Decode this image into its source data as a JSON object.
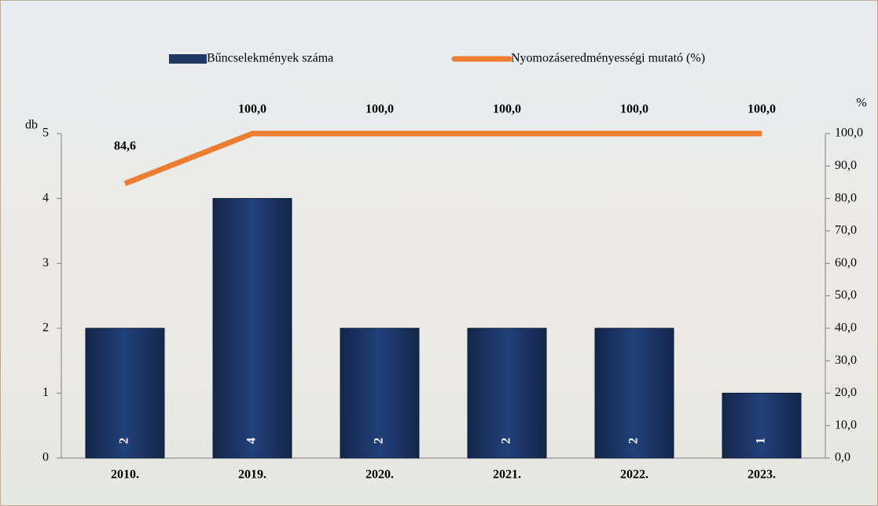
{
  "chart_data": {
    "type": "bar-line",
    "y_label": "db",
    "y2_label": "%",
    "categories": [
      "2010.",
      "2019.",
      "2020.",
      "2021.",
      "2022.",
      "2023."
    ],
    "series": [
      {
        "name": "Bűncselekmények száma",
        "type": "bar",
        "color": "#1f3864",
        "values": [
          2,
          4,
          2,
          2,
          2,
          1
        ]
      },
      {
        "name": "Nyomozáseredményességi mutató (%)",
        "type": "line",
        "axis": "y2",
        "color": "#ed7d31",
        "values": [
          84.6,
          100,
          100,
          100,
          100,
          100
        ],
        "value_labels": [
          "84,6",
          "100,0",
          "100,0",
          "100,0",
          "100,0",
          "100,0"
        ]
      }
    ],
    "ylim": [
      0,
      5
    ],
    "yticks": [
      0,
      1,
      2,
      3,
      4,
      5
    ],
    "y2lim": [
      0,
      100
    ],
    "y2ticks": [
      {
        "value": 0,
        "label": "0,0"
      },
      {
        "value": 10,
        "label": "10,0"
      },
      {
        "value": 20,
        "label": "20,0"
      },
      {
        "value": 30,
        "label": "30,0"
      },
      {
        "value": 40,
        "label": "40,0"
      },
      {
        "value": 50,
        "label": "50,0"
      },
      {
        "value": 60,
        "label": "60,0"
      },
      {
        "value": 70,
        "label": "70,0"
      },
      {
        "value": 80,
        "label": "80,0"
      },
      {
        "value": 90,
        "label": "90,0"
      },
      {
        "value": 100,
        "label": "100,0"
      }
    ]
  }
}
